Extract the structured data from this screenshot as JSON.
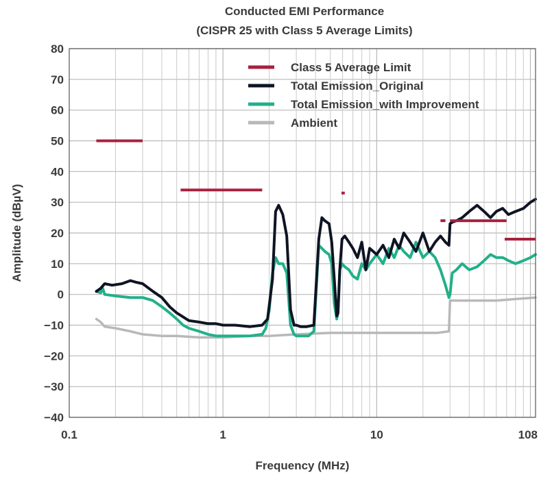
{
  "colors": {
    "limit": "#a8203f",
    "original": "#0f1424",
    "improved": "#22b08a",
    "ambient": "#b8b8bb"
  },
  "chart_data": {
    "type": "line",
    "title": "Conducted EMI Performance",
    "subtitle": "(CISPR 25 with Class 5 Average Limits)",
    "xlabel": "Frequency (MHz)",
    "ylabel": "Amplitude (dBµV)",
    "xscale": "log",
    "xlim": [
      0.1,
      108
    ],
    "ylim": [
      -40,
      80
    ],
    "xticks": [
      {
        "value": 0.1,
        "label": "0.1"
      },
      {
        "value": 1,
        "label": "1"
      },
      {
        "value": 10,
        "label": "10"
      },
      {
        "value": 108,
        "label": "108"
      }
    ],
    "yticks": [
      80,
      70,
      60,
      50,
      40,
      30,
      20,
      10,
      0,
      -10,
      -20,
      -30,
      -40
    ],
    "ytick_labels": [
      "80",
      "70",
      "60",
      "50",
      "40",
      "30",
      "20",
      "10",
      "0",
      "−10",
      "−20",
      "−30",
      "−40"
    ],
    "grid": true,
    "legend": "top-right",
    "series": [
      {
        "name": "Class 5 Average Limit",
        "key": "limit",
        "segments": [
          [
            [
              0.15,
              50
            ],
            [
              0.3,
              50
            ]
          ],
          [
            [
              0.53,
              34
            ],
            [
              1.8,
              34
            ]
          ],
          [
            [
              5.9,
              33
            ],
            [
              6.2,
              33
            ]
          ],
          [
            [
              26,
              24
            ],
            [
              28,
              24
            ]
          ],
          [
            [
              30,
              24
            ],
            [
              70,
              24
            ]
          ],
          [
            [
              68,
              18
            ],
            [
              108,
              18
            ]
          ]
        ]
      },
      {
        "name": "Total Emission_Original",
        "key": "original",
        "x": [
          0.15,
          0.16,
          0.17,
          0.19,
          0.22,
          0.25,
          0.27,
          0.3,
          0.35,
          0.4,
          0.45,
          0.5,
          0.6,
          0.7,
          0.8,
          0.9,
          1.0,
          1.2,
          1.5,
          1.8,
          1.95,
          2.1,
          2.2,
          2.3,
          2.45,
          2.6,
          2.75,
          2.9,
          3.0,
          3.2,
          3.5,
          3.9,
          4.2,
          4.4,
          4.6,
          4.9,
          5.1,
          5.3,
          5.5,
          5.6,
          5.75,
          5.95,
          6.2,
          6.6,
          7.0,
          7.5,
          8.0,
          8.5,
          9.0,
          10.0,
          11.0,
          12.0,
          13.0,
          14.0,
          15.0,
          16.5,
          18.0,
          20.0,
          22.0,
          24.0,
          26.0,
          28.0,
          29.5,
          30.0,
          31.0,
          33.0,
          36.0,
          40.0,
          45.0,
          50.0,
          55.0,
          60.0,
          66.0,
          72.0,
          80.0,
          90.0,
          100.0,
          108.0
        ],
        "values": [
          1,
          2,
          3.5,
          3,
          3.5,
          4.5,
          4,
          3.5,
          1,
          -1,
          -4,
          -6,
          -8.5,
          -9,
          -9.5,
          -9.5,
          -10,
          -10,
          -10.5,
          -10,
          -8,
          5,
          27,
          29,
          26,
          19,
          -5,
          -10,
          -10,
          -10.5,
          -10.5,
          -10,
          18,
          25,
          24,
          23,
          17,
          5,
          -7,
          -6,
          8,
          18,
          19,
          17,
          15,
          12,
          17,
          8,
          15,
          13,
          16,
          12,
          18,
          15,
          20,
          17,
          14,
          20,
          14,
          17,
          19,
          17,
          16,
          23,
          23.5,
          24,
          25,
          27,
          29,
          27,
          25,
          27,
          28,
          26,
          27,
          28,
          30,
          31
        ]
      },
      {
        "name": "Total Emission_with Improvement",
        "key": "improved",
        "x": [
          0.15,
          0.16,
          0.165,
          0.17,
          0.2,
          0.25,
          0.3,
          0.35,
          0.4,
          0.45,
          0.5,
          0.55,
          0.6,
          0.7,
          0.8,
          0.9,
          1.0,
          1.2,
          1.5,
          1.8,
          1.9,
          2.0,
          2.1,
          2.2,
          2.3,
          2.45,
          2.6,
          2.75,
          2.9,
          3.0,
          3.2,
          3.6,
          3.9,
          4.2,
          4.4,
          4.6,
          4.9,
          5.1,
          5.3,
          5.5,
          5.6,
          5.75,
          5.95,
          6.2,
          6.6,
          7.0,
          7.5,
          8.0,
          8.5,
          9.0,
          10.0,
          11.0,
          12.0,
          13.0,
          14.0,
          15.0,
          16.5,
          18.0,
          20.0,
          22.0,
          24.0,
          26.0,
          28.0,
          29.5,
          30.0,
          31.0,
          33.0,
          36.0,
          40.0,
          45.0,
          50.0,
          55.0,
          60.0,
          66.0,
          72.0,
          80.0,
          90.0,
          100.0,
          108.0
        ],
        "values": [
          1,
          0.5,
          2,
          0,
          -0.5,
          -1,
          -1,
          -2,
          -4,
          -6,
          -8,
          -10,
          -11,
          -12,
          -13,
          -13.5,
          -13.5,
          -13.5,
          -13.5,
          -13,
          -11,
          -5,
          7,
          12,
          10,
          10,
          7,
          -10,
          -13,
          -13.5,
          -13.5,
          -13.5,
          -12,
          16,
          15,
          14,
          13,
          10,
          -3,
          -8,
          -6,
          8,
          10,
          9,
          8,
          6,
          5,
          10,
          8,
          10,
          13,
          10,
          15,
          12,
          16,
          14,
          12,
          17,
          12,
          14,
          12,
          8,
          3,
          -1,
          0,
          7,
          8,
          10,
          8,
          9,
          11,
          13,
          12,
          12,
          11,
          10,
          11,
          12,
          13
        ]
      },
      {
        "name": "Ambient",
        "key": "ambient",
        "x": [
          0.15,
          0.16,
          0.17,
          0.2,
          0.25,
          0.3,
          0.4,
          0.5,
          0.7,
          1.0,
          1.5,
          2.0,
          3.0,
          5.0,
          8.0,
          10.0,
          15.0,
          20.0,
          25.0,
          29.5,
          30.0,
          31.0,
          40.0,
          60.0,
          80.0,
          108.0
        ],
        "values": [
          -8,
          -9,
          -10.5,
          -11,
          -12,
          -13,
          -13.5,
          -13.5,
          -14,
          -14,
          -13.5,
          -13.5,
          -13,
          -12.5,
          -12.5,
          -12.5,
          -12.5,
          -12.5,
          -12.5,
          -12,
          -2,
          -2,
          -2,
          -2,
          -1.5,
          -1
        ]
      }
    ]
  }
}
